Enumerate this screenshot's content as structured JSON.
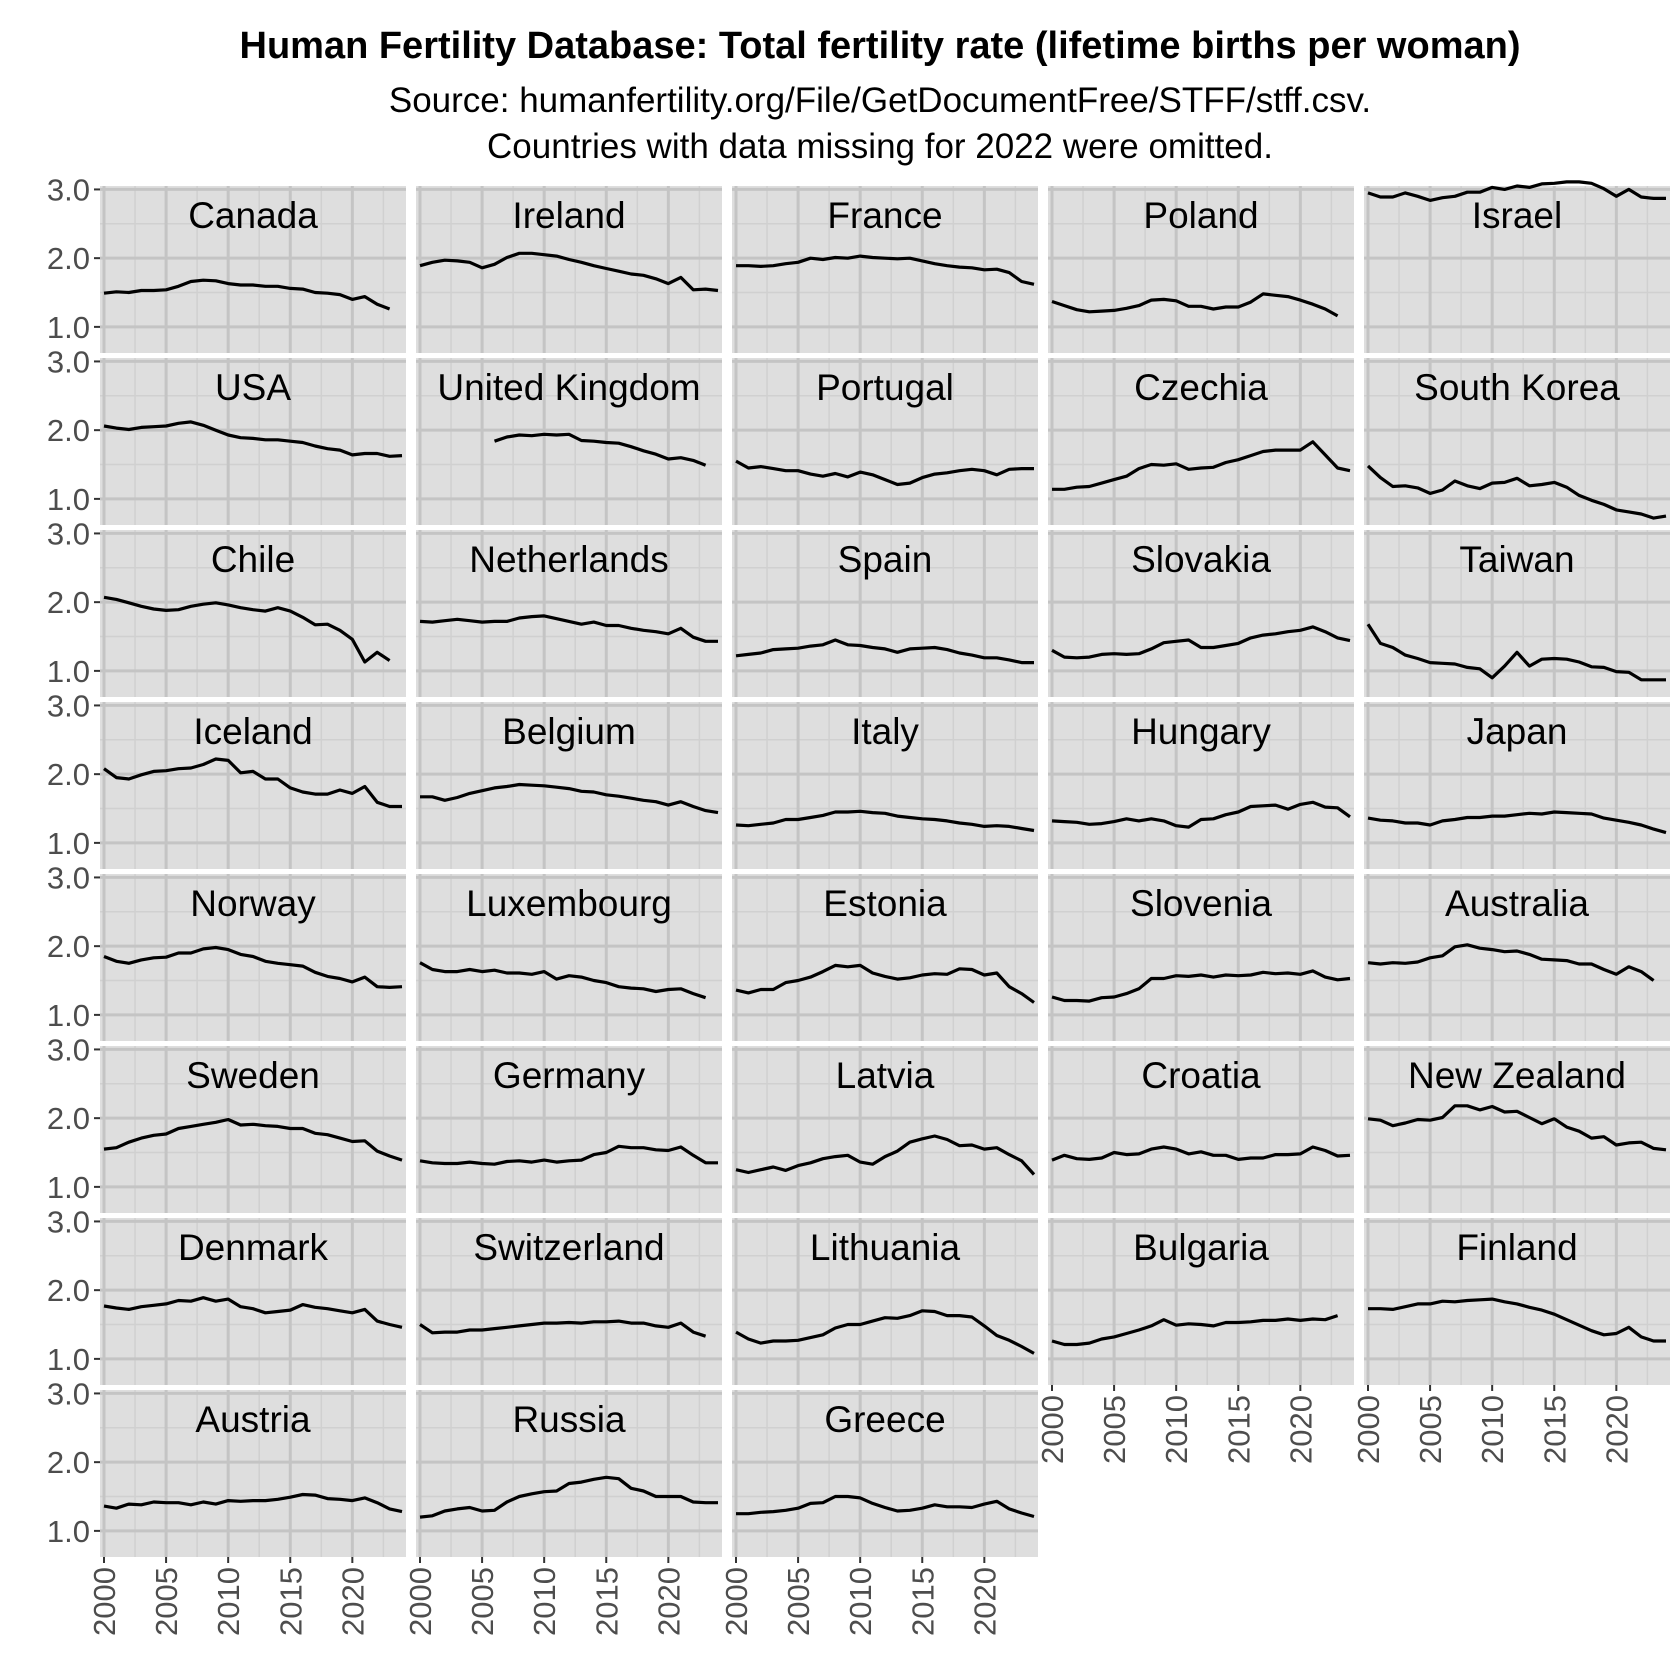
{
  "chart_data": {
    "type": "line",
    "title": "Human Fertility Database: Total fertility rate (lifetime births per woman)",
    "subtitle": [
      "Source: humanfertility.org/File/GetDocumentFree/STFF/stff.csv.",
      "Countries with data missing for 2022 were omitted."
    ],
    "xlabel": "",
    "ylabel": "",
    "xlim": [
      2000,
      2024
    ],
    "ylim": [
      0.62,
      3.05
    ],
    "x_ticks": [
      "2000",
      "2005",
      "2010",
      "2015",
      "2020"
    ],
    "y_ticks": [
      "1.0",
      "2.0",
      "3.0"
    ],
    "grid": true,
    "layout": "facet-wrap-5-columns",
    "series": [
      {
        "name": "Canada",
        "start": 2000,
        "values": [
          1.49,
          1.51,
          1.5,
          1.53,
          1.53,
          1.54,
          1.59,
          1.66,
          1.68,
          1.67,
          1.63,
          1.61,
          1.61,
          1.59,
          1.59,
          1.56,
          1.55,
          1.5,
          1.49,
          1.47,
          1.4,
          1.44,
          1.33,
          1.26
        ]
      },
      {
        "name": "Ireland",
        "start": 2000,
        "values": [
          1.89,
          1.94,
          1.97,
          1.96,
          1.94,
          1.86,
          1.91,
          2.01,
          2.07,
          2.07,
          2.05,
          2.03,
          1.98,
          1.94,
          1.89,
          1.85,
          1.81,
          1.77,
          1.75,
          1.7,
          1.63,
          1.72,
          1.54,
          1.55,
          1.53
        ]
      },
      {
        "name": "France",
        "start": 2000,
        "values": [
          1.89,
          1.89,
          1.88,
          1.89,
          1.92,
          1.94,
          2.0,
          1.98,
          2.01,
          2.0,
          2.03,
          2.01,
          2.0,
          1.99,
          2.0,
          1.96,
          1.92,
          1.89,
          1.87,
          1.86,
          1.83,
          1.84,
          1.79,
          1.66,
          1.62
        ]
      },
      {
        "name": "Poland",
        "start": 2000,
        "values": [
          1.37,
          1.31,
          1.25,
          1.22,
          1.23,
          1.24,
          1.27,
          1.31,
          1.39,
          1.4,
          1.38,
          1.3,
          1.3,
          1.26,
          1.29,
          1.29,
          1.36,
          1.48,
          1.46,
          1.44,
          1.39,
          1.33,
          1.26,
          1.16
        ]
      },
      {
        "name": "Israel",
        "start": 2000,
        "values": [
          2.95,
          2.89,
          2.89,
          2.95,
          2.9,
          2.84,
          2.88,
          2.9,
          2.96,
          2.96,
          3.03,
          3.0,
          3.05,
          3.03,
          3.08,
          3.09,
          3.11,
          3.11,
          3.09,
          3.01,
          2.9,
          3.0,
          2.89,
          2.87,
          2.87
        ]
      },
      {
        "name": "USA",
        "start": 2000,
        "values": [
          2.06,
          2.03,
          2.01,
          2.04,
          2.05,
          2.06,
          2.1,
          2.12,
          2.07,
          2.0,
          1.93,
          1.89,
          1.88,
          1.86,
          1.86,
          1.84,
          1.82,
          1.77,
          1.73,
          1.71,
          1.64,
          1.66,
          1.66,
          1.62,
          1.63
        ]
      },
      {
        "name": "United Kingdom",
        "start": 2006,
        "values": [
          1.84,
          1.9,
          1.93,
          1.92,
          1.94,
          1.93,
          1.94,
          1.85,
          1.84,
          1.82,
          1.81,
          1.76,
          1.7,
          1.65,
          1.58,
          1.6,
          1.56,
          1.49
        ]
      },
      {
        "name": "Portugal",
        "start": 2000,
        "values": [
          1.55,
          1.45,
          1.47,
          1.44,
          1.41,
          1.41,
          1.36,
          1.33,
          1.37,
          1.32,
          1.39,
          1.35,
          1.28,
          1.21,
          1.23,
          1.31,
          1.36,
          1.38,
          1.41,
          1.43,
          1.41,
          1.35,
          1.43,
          1.44,
          1.44
        ]
      },
      {
        "name": "Czechia",
        "start": 2000,
        "values": [
          1.14,
          1.14,
          1.17,
          1.18,
          1.23,
          1.28,
          1.33,
          1.44,
          1.5,
          1.49,
          1.51,
          1.43,
          1.45,
          1.46,
          1.53,
          1.57,
          1.63,
          1.69,
          1.71,
          1.71,
          1.71,
          1.83,
          1.64,
          1.45,
          1.41
        ]
      },
      {
        "name": "South Korea",
        "start": 2000,
        "values": [
          1.48,
          1.31,
          1.18,
          1.19,
          1.16,
          1.08,
          1.13,
          1.26,
          1.19,
          1.15,
          1.23,
          1.24,
          1.3,
          1.19,
          1.21,
          1.24,
          1.17,
          1.05,
          0.98,
          0.92,
          0.84,
          0.81,
          0.78,
          0.72,
          0.75
        ]
      },
      {
        "name": "Chile",
        "start": 2000,
        "values": [
          2.07,
          2.04,
          1.99,
          1.94,
          1.9,
          1.88,
          1.89,
          1.94,
          1.97,
          1.99,
          1.96,
          1.92,
          1.89,
          1.87,
          1.92,
          1.87,
          1.78,
          1.67,
          1.68,
          1.59,
          1.46,
          1.13,
          1.27,
          1.15
        ]
      },
      {
        "name": "Netherlands",
        "start": 2000,
        "values": [
          1.72,
          1.71,
          1.73,
          1.75,
          1.73,
          1.71,
          1.72,
          1.72,
          1.77,
          1.79,
          1.8,
          1.76,
          1.72,
          1.68,
          1.71,
          1.66,
          1.66,
          1.62,
          1.59,
          1.57,
          1.54,
          1.62,
          1.49,
          1.43,
          1.43
        ]
      },
      {
        "name": "Spain",
        "start": 2000,
        "values": [
          1.22,
          1.24,
          1.26,
          1.31,
          1.32,
          1.33,
          1.36,
          1.38,
          1.45,
          1.38,
          1.37,
          1.34,
          1.32,
          1.27,
          1.32,
          1.33,
          1.34,
          1.31,
          1.26,
          1.23,
          1.19,
          1.19,
          1.16,
          1.12,
          1.12
        ]
      },
      {
        "name": "Slovakia",
        "start": 2000,
        "values": [
          1.3,
          1.2,
          1.19,
          1.2,
          1.24,
          1.25,
          1.24,
          1.25,
          1.32,
          1.41,
          1.43,
          1.45,
          1.34,
          1.34,
          1.37,
          1.4,
          1.48,
          1.52,
          1.54,
          1.57,
          1.59,
          1.64,
          1.57,
          1.48,
          1.44
        ]
      },
      {
        "name": "Taiwan",
        "start": 2000,
        "values": [
          1.68,
          1.4,
          1.34,
          1.23,
          1.18,
          1.12,
          1.11,
          1.1,
          1.05,
          1.03,
          0.9,
          1.07,
          1.27,
          1.07,
          1.17,
          1.18,
          1.17,
          1.13,
          1.06,
          1.05,
          0.99,
          0.98,
          0.87,
          0.87,
          0.87
        ]
      },
      {
        "name": "Iceland",
        "start": 2000,
        "values": [
          2.08,
          1.95,
          1.93,
          1.99,
          2.04,
          2.05,
          2.08,
          2.09,
          2.14,
          2.22,
          2.2,
          2.02,
          2.04,
          1.93,
          1.93,
          1.8,
          1.74,
          1.71,
          1.71,
          1.77,
          1.72,
          1.82,
          1.59,
          1.53,
          1.53
        ]
      },
      {
        "name": "Belgium",
        "start": 2000,
        "values": [
          1.67,
          1.67,
          1.62,
          1.66,
          1.72,
          1.76,
          1.8,
          1.82,
          1.85,
          1.84,
          1.83,
          1.81,
          1.79,
          1.75,
          1.74,
          1.7,
          1.68,
          1.65,
          1.62,
          1.6,
          1.55,
          1.6,
          1.53,
          1.47,
          1.44
        ]
      },
      {
        "name": "Italy",
        "start": 2000,
        "values": [
          1.26,
          1.25,
          1.27,
          1.29,
          1.34,
          1.34,
          1.37,
          1.4,
          1.45,
          1.45,
          1.46,
          1.44,
          1.43,
          1.39,
          1.37,
          1.35,
          1.34,
          1.32,
          1.29,
          1.27,
          1.24,
          1.25,
          1.24,
          1.21,
          1.18
        ]
      },
      {
        "name": "Hungary",
        "start": 2000,
        "values": [
          1.32,
          1.31,
          1.3,
          1.27,
          1.28,
          1.31,
          1.35,
          1.32,
          1.35,
          1.32,
          1.25,
          1.23,
          1.34,
          1.35,
          1.41,
          1.45,
          1.53,
          1.54,
          1.55,
          1.49,
          1.56,
          1.59,
          1.52,
          1.51,
          1.38
        ]
      },
      {
        "name": "Japan",
        "start": 2000,
        "values": [
          1.36,
          1.33,
          1.32,
          1.29,
          1.29,
          1.26,
          1.32,
          1.34,
          1.37,
          1.37,
          1.39,
          1.39,
          1.41,
          1.43,
          1.42,
          1.45,
          1.44,
          1.43,
          1.42,
          1.36,
          1.33,
          1.3,
          1.26,
          1.2,
          1.15
        ]
      },
      {
        "name": "Norway",
        "start": 2000,
        "values": [
          1.85,
          1.78,
          1.75,
          1.8,
          1.83,
          1.84,
          1.9,
          1.9,
          1.96,
          1.98,
          1.95,
          1.88,
          1.85,
          1.78,
          1.75,
          1.73,
          1.71,
          1.62,
          1.56,
          1.53,
          1.48,
          1.55,
          1.41,
          1.4,
          1.41
        ]
      },
      {
        "name": "Luxembourg",
        "start": 2000,
        "values": [
          1.76,
          1.66,
          1.63,
          1.63,
          1.66,
          1.63,
          1.65,
          1.61,
          1.61,
          1.59,
          1.63,
          1.52,
          1.57,
          1.55,
          1.5,
          1.47,
          1.41,
          1.39,
          1.38,
          1.34,
          1.37,
          1.38,
          1.31,
          1.25
        ]
      },
      {
        "name": "Estonia",
        "start": 2000,
        "values": [
          1.36,
          1.32,
          1.37,
          1.37,
          1.47,
          1.5,
          1.55,
          1.63,
          1.72,
          1.7,
          1.72,
          1.61,
          1.56,
          1.52,
          1.54,
          1.58,
          1.6,
          1.59,
          1.67,
          1.66,
          1.58,
          1.61,
          1.41,
          1.31,
          1.18
        ]
      },
      {
        "name": "Slovenia",
        "start": 2000,
        "values": [
          1.26,
          1.21,
          1.21,
          1.2,
          1.25,
          1.26,
          1.31,
          1.38,
          1.53,
          1.53,
          1.57,
          1.56,
          1.58,
          1.55,
          1.58,
          1.57,
          1.58,
          1.62,
          1.6,
          1.61,
          1.59,
          1.64,
          1.55,
          1.51,
          1.53
        ]
      },
      {
        "name": "Australia",
        "start": 2000,
        "values": [
          1.76,
          1.74,
          1.76,
          1.75,
          1.77,
          1.83,
          1.86,
          1.99,
          2.02,
          1.97,
          1.95,
          1.92,
          1.93,
          1.88,
          1.81,
          1.8,
          1.79,
          1.74,
          1.74,
          1.66,
          1.59,
          1.7,
          1.63,
          1.5
        ]
      },
      {
        "name": "Sweden",
        "start": 2000,
        "values": [
          1.55,
          1.57,
          1.65,
          1.71,
          1.75,
          1.77,
          1.85,
          1.88,
          1.91,
          1.94,
          1.98,
          1.9,
          1.91,
          1.89,
          1.88,
          1.85,
          1.85,
          1.78,
          1.76,
          1.71,
          1.66,
          1.67,
          1.52,
          1.45,
          1.39
        ]
      },
      {
        "name": "Germany",
        "start": 2000,
        "values": [
          1.38,
          1.35,
          1.34,
          1.34,
          1.36,
          1.34,
          1.33,
          1.37,
          1.38,
          1.36,
          1.39,
          1.36,
          1.38,
          1.39,
          1.47,
          1.5,
          1.59,
          1.57,
          1.57,
          1.54,
          1.53,
          1.58,
          1.46,
          1.35,
          1.35
        ]
      },
      {
        "name": "Latvia",
        "start": 2000,
        "values": [
          1.25,
          1.21,
          1.25,
          1.29,
          1.24,
          1.31,
          1.35,
          1.41,
          1.44,
          1.46,
          1.36,
          1.33,
          1.44,
          1.52,
          1.65,
          1.7,
          1.74,
          1.69,
          1.6,
          1.61,
          1.55,
          1.57,
          1.47,
          1.38,
          1.18
        ]
      },
      {
        "name": "Croatia",
        "start": 2000,
        "values": [
          1.39,
          1.46,
          1.41,
          1.4,
          1.42,
          1.5,
          1.47,
          1.48,
          1.55,
          1.58,
          1.55,
          1.48,
          1.51,
          1.46,
          1.46,
          1.4,
          1.42,
          1.42,
          1.47,
          1.47,
          1.48,
          1.58,
          1.53,
          1.45,
          1.46
        ]
      },
      {
        "name": "New Zealand",
        "start": 2000,
        "values": [
          1.99,
          1.97,
          1.89,
          1.93,
          1.98,
          1.97,
          2.01,
          2.18,
          2.18,
          2.12,
          2.17,
          2.09,
          2.1,
          2.01,
          1.92,
          1.99,
          1.87,
          1.81,
          1.71,
          1.73,
          1.61,
          1.64,
          1.65,
          1.56,
          1.54
        ]
      },
      {
        "name": "Denmark",
        "start": 2000,
        "values": [
          1.77,
          1.74,
          1.72,
          1.76,
          1.78,
          1.8,
          1.85,
          1.84,
          1.89,
          1.84,
          1.87,
          1.76,
          1.73,
          1.67,
          1.69,
          1.71,
          1.79,
          1.75,
          1.73,
          1.7,
          1.67,
          1.72,
          1.55,
          1.5,
          1.46
        ]
      },
      {
        "name": "Switzerland",
        "start": 2000,
        "values": [
          1.5,
          1.38,
          1.39,
          1.39,
          1.42,
          1.42,
          1.44,
          1.46,
          1.48,
          1.5,
          1.52,
          1.52,
          1.53,
          1.52,
          1.54,
          1.54,
          1.55,
          1.52,
          1.52,
          1.48,
          1.46,
          1.52,
          1.39,
          1.33
        ]
      },
      {
        "name": "Lithuania",
        "start": 2000,
        "values": [
          1.39,
          1.29,
          1.23,
          1.26,
          1.26,
          1.27,
          1.31,
          1.35,
          1.45,
          1.5,
          1.5,
          1.55,
          1.6,
          1.59,
          1.63,
          1.7,
          1.69,
          1.63,
          1.63,
          1.61,
          1.48,
          1.34,
          1.27,
          1.18,
          1.08
        ]
      },
      {
        "name": "Bulgaria",
        "start": 2000,
        "values": [
          1.26,
          1.21,
          1.21,
          1.23,
          1.29,
          1.32,
          1.37,
          1.42,
          1.48,
          1.57,
          1.49,
          1.51,
          1.5,
          1.48,
          1.53,
          1.53,
          1.54,
          1.56,
          1.56,
          1.58,
          1.56,
          1.58,
          1.57,
          1.63
        ]
      },
      {
        "name": "Finland",
        "start": 2000,
        "values": [
          1.73,
          1.73,
          1.72,
          1.76,
          1.8,
          1.8,
          1.84,
          1.83,
          1.85,
          1.86,
          1.87,
          1.83,
          1.8,
          1.75,
          1.71,
          1.65,
          1.57,
          1.49,
          1.41,
          1.35,
          1.37,
          1.46,
          1.32,
          1.26,
          1.26
        ]
      },
      {
        "name": "Austria",
        "start": 2000,
        "values": [
          1.36,
          1.33,
          1.39,
          1.38,
          1.42,
          1.41,
          1.41,
          1.38,
          1.42,
          1.39,
          1.44,
          1.43,
          1.44,
          1.44,
          1.46,
          1.49,
          1.53,
          1.52,
          1.47,
          1.46,
          1.44,
          1.48,
          1.41,
          1.32,
          1.28
        ]
      },
      {
        "name": "Russia",
        "start": 2000,
        "values": [
          1.2,
          1.22,
          1.29,
          1.32,
          1.34,
          1.29,
          1.3,
          1.42,
          1.5,
          1.54,
          1.57,
          1.58,
          1.69,
          1.71,
          1.75,
          1.78,
          1.76,
          1.62,
          1.58,
          1.5,
          1.5,
          1.5,
          1.42,
          1.41,
          1.41
        ]
      },
      {
        "name": "Greece",
        "start": 2000,
        "values": [
          1.25,
          1.25,
          1.27,
          1.28,
          1.3,
          1.33,
          1.4,
          1.41,
          1.5,
          1.5,
          1.48,
          1.4,
          1.34,
          1.29,
          1.3,
          1.33,
          1.38,
          1.35,
          1.35,
          1.34,
          1.39,
          1.43,
          1.32,
          1.26,
          1.21
        ]
      }
    ]
  }
}
